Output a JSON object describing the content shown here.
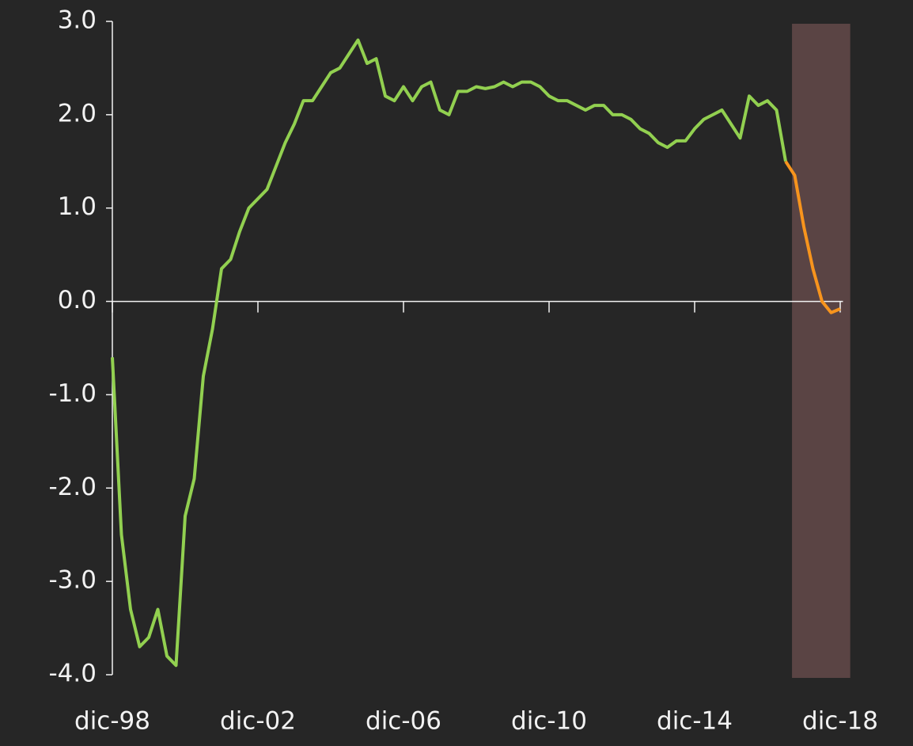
{
  "chart_data": {
    "type": "line",
    "categories": [
      "dic-98",
      null,
      null,
      null,
      null,
      null,
      null,
      null,
      null,
      null,
      null,
      null,
      null,
      null,
      null,
      null,
      "dic-02",
      null,
      null,
      null,
      null,
      null,
      null,
      null,
      null,
      null,
      null,
      null,
      null,
      null,
      null,
      null,
      "dic-06",
      null,
      null,
      null,
      null,
      null,
      null,
      null,
      null,
      null,
      null,
      null,
      null,
      null,
      null,
      null,
      "dic-10",
      null,
      null,
      null,
      null,
      null,
      null,
      null,
      null,
      null,
      null,
      null,
      null,
      null,
      null,
      null,
      "dic-14",
      null,
      null,
      null,
      null,
      null,
      null,
      null,
      null,
      null,
      null,
      null,
      null,
      null,
      null,
      null,
      "dic-18",
      null
    ],
    "series": [
      {
        "color": "#92d050",
        "values": [
          -0.6,
          -2.5,
          -3.3,
          -3.7,
          -3.6,
          -3.3,
          -3.8,
          -3.9,
          -2.3,
          -1.9,
          -0.8,
          -0.3,
          0.35,
          0.45,
          0.75,
          1.0,
          1.1,
          1.2,
          1.45,
          1.7,
          1.9,
          2.15,
          2.15,
          2.3,
          2.45,
          2.5,
          2.65,
          2.8,
          2.55,
          2.6,
          2.2,
          2.15,
          2.3,
          2.15,
          2.3,
          2.35,
          2.05,
          2.0,
          2.25,
          2.25,
          2.3,
          2.28,
          2.3,
          2.35,
          2.3,
          2.35,
          2.35,
          2.3,
          2.2,
          2.15,
          2.15,
          2.1,
          2.05,
          2.1,
          2.1,
          2.0,
          2.0,
          1.95,
          1.85,
          1.8,
          1.7,
          1.65,
          1.72,
          1.72,
          1.85,
          1.95,
          2.0,
          2.05,
          1.9,
          1.75,
          2.2,
          2.1,
          2.15,
          2.05,
          1.5,
          null,
          null,
          null,
          null,
          null,
          null,
          null
        ]
      },
      {
        "color": "#f7941d",
        "values": [
          null,
          null,
          null,
          null,
          null,
          null,
          null,
          null,
          null,
          null,
          null,
          null,
          null,
          null,
          null,
          null,
          null,
          null,
          null,
          null,
          null,
          null,
          null,
          null,
          null,
          null,
          null,
          null,
          null,
          null,
          null,
          null,
          null,
          null,
          null,
          null,
          null,
          null,
          null,
          null,
          null,
          null,
          null,
          null,
          null,
          null,
          null,
          null,
          null,
          null,
          null,
          null,
          null,
          null,
          null,
          null,
          null,
          null,
          null,
          null,
          null,
          null,
          null,
          null,
          null,
          null,
          null,
          null,
          null,
          null,
          null,
          null,
          null,
          null,
          1.5,
          1.35,
          0.8,
          0.35,
          0.0,
          -0.12,
          -0.08,
          null
        ]
      }
    ],
    "shaded_range": [
      74.7,
      81.1
    ],
    "shade_color": "#5a4444",
    "ylim": [
      -4,
      3
    ],
    "yticks": [
      {
        "value": -4,
        "label": "-4.0"
      },
      {
        "value": -3,
        "label": "-3.0"
      },
      {
        "value": -2,
        "label": "-2.0"
      },
      {
        "value": -1,
        "label": "-1.0"
      },
      {
        "value": 0,
        "label": "0.0"
      },
      {
        "value": 1,
        "label": "1.0"
      },
      {
        "value": 2,
        "label": "2.0"
      },
      {
        "value": 3,
        "label": "3.0"
      }
    ]
  }
}
